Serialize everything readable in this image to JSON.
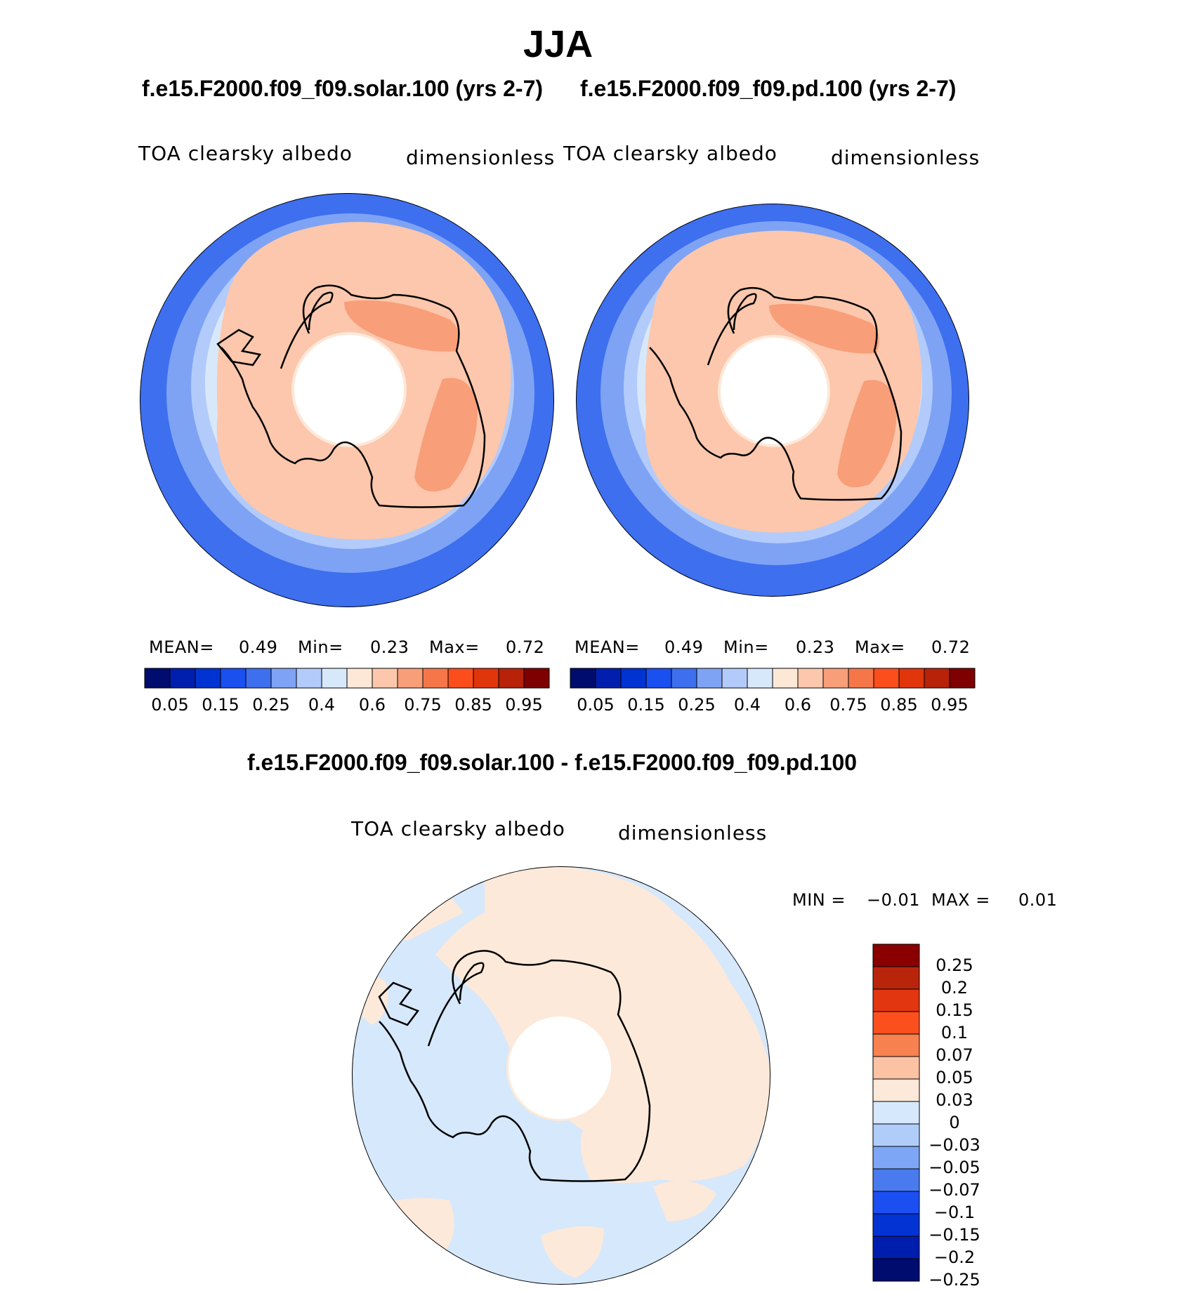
{
  "figure": {
    "season": "JJA",
    "left_case_title": "f.e15.F2000.f09_f09.solar.100 (yrs 2-7)",
    "right_case_title": "f.e15.F2000.f09_f09.pd.100 (yrs 2-7)",
    "diff_title": "f.e15.F2000.f09_f09.solar.100 - f.e15.F2000.f09_f09.pd.100"
  },
  "left_panel": {
    "variable": "TOA clearsky albedo",
    "units": "dimensionless",
    "mean_label": "MEAN=",
    "mean_value": "0.49",
    "min_label": "Min=",
    "min_value": "0.23",
    "max_label": "Max=",
    "max_value": "0.72"
  },
  "right_panel": {
    "variable": "TOA clearsky albedo",
    "units": "dimensionless",
    "mean_label": "MEAN=",
    "mean_value": "0.49",
    "min_label": "Min=",
    "min_value": "0.23",
    "max_label": "Max=",
    "max_value": "0.72"
  },
  "diff_panel": {
    "variable": "TOA clearsky albedo",
    "units": "dimensionless",
    "min_label": "MIN =",
    "min_value": "−0.01",
    "max_label": "MAX =",
    "max_value": "0.01"
  },
  "abs_colorbar": {
    "colors": [
      "#000c6e",
      "#001fae",
      "#0033d1",
      "#1a4ff0",
      "#3d6fef",
      "#7ea3f5",
      "#b3cbfa",
      "#d8e8fb",
      "#fde8d8",
      "#fcc7ac",
      "#f89e79",
      "#f57749",
      "#fb4e1c",
      "#e1350b",
      "#b72208",
      "#7f0000"
    ],
    "tick_labels": [
      "0.05",
      "0.15",
      "0.25",
      "0.4",
      "0.6",
      "0.75",
      "0.85",
      "0.95"
    ]
  },
  "diff_colorbar": {
    "colors_top_to_bottom": [
      "#8a0000",
      "#b9250a",
      "#e23610",
      "#fb501e",
      "#f88150",
      "#fbc2a3",
      "#fde9d9",
      "#d6e8fb",
      "#b0cdfa",
      "#7ea6f6",
      "#4a7bee",
      "#1b4ff1",
      "#0433d4",
      "#001ead",
      "#000c6e"
    ],
    "tick_labels": [
      "0.25",
      "0.2",
      "0.15",
      "0.1",
      "0.07",
      "0.05",
      "0.03",
      "0",
      "−0.03",
      "−0.05",
      "−0.07",
      "−0.1",
      "−0.15",
      "−0.2",
      "−0.25"
    ]
  }
}
